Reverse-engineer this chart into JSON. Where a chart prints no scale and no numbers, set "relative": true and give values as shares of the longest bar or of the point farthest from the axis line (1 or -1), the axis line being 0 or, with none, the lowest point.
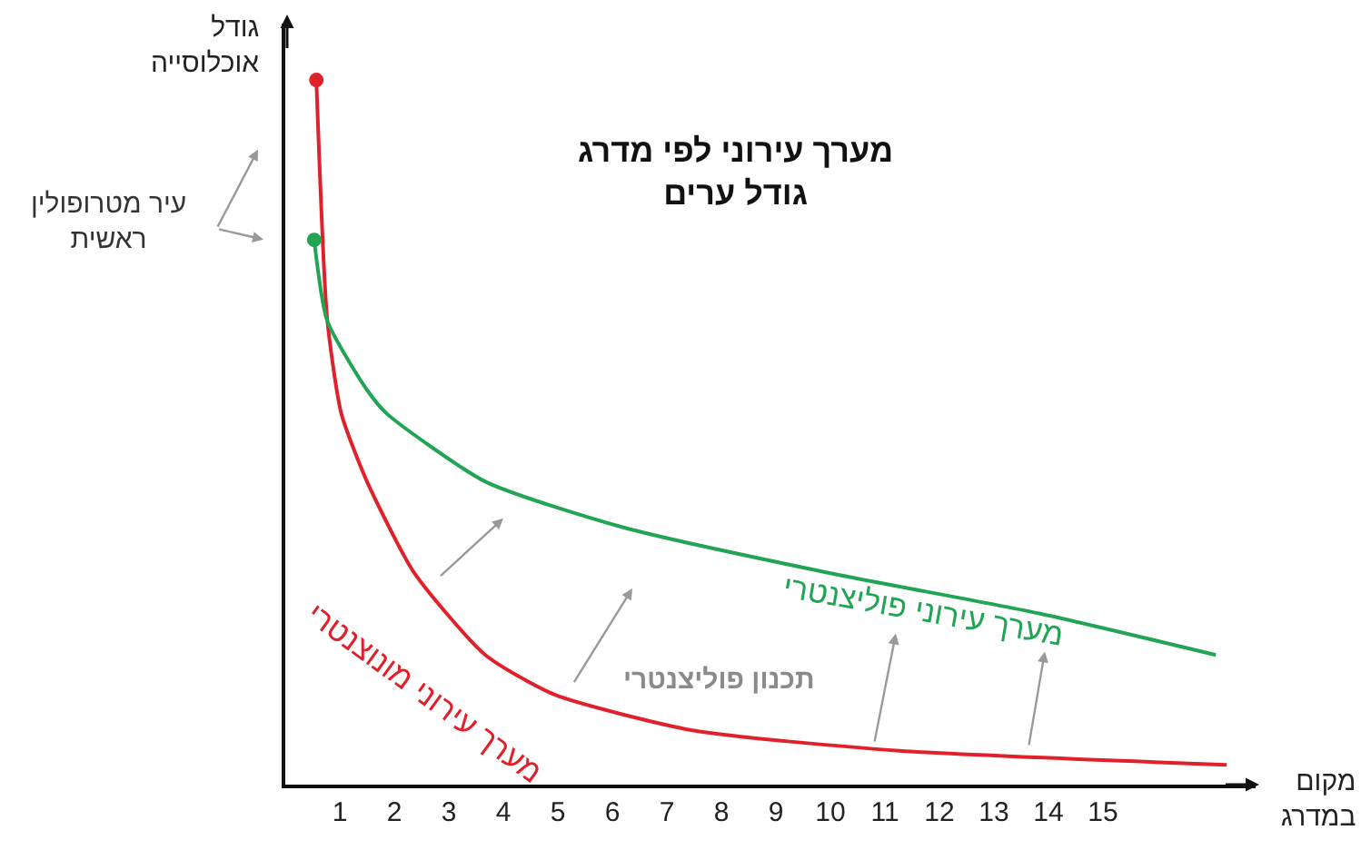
{
  "chart_data": {
    "type": "line",
    "relative": true,
    "title": "מערך עירוני לפי מדרג\nגודל ערים",
    "xlabel": "מקום\nבמדרג",
    "ylabel": "גודל\nאוכלוסייה",
    "xlim": [
      0,
      17.8
    ],
    "xticks": [
      1,
      2,
      3,
      4,
      5,
      6,
      7,
      8,
      9,
      10,
      11,
      12,
      13,
      14,
      15
    ],
    "series": [
      {
        "name": "מערך עירוני מונוצנטרי",
        "color": "#e0202a",
        "x": [
          0.57,
          0.77,
          1.03,
          1.5,
          2.37,
          3.67,
          4.93,
          7.47,
          11.27,
          17.27
        ],
        "values": [
          1.0,
          0.66,
          0.526,
          0.43,
          0.3,
          0.184,
          0.128,
          0.077,
          0.048,
          0.028
        ]
      },
      {
        "name": "מערך עירוני פוליצנטרי",
        "color": "#22a455",
        "x": [
          0.53,
          0.77,
          1.5,
          1.87,
          3.67,
          6.2,
          10.0,
          13.83,
          17.07
        ],
        "values": [
          0.773,
          0.658,
          0.56,
          0.526,
          0.43,
          0.365,
          0.3,
          0.243,
          0.184
        ]
      },
      {
        "type": "scatter",
        "color": "#e0202a",
        "x": [
          0.57
        ],
        "values": [
          1.0
        ]
      },
      {
        "type": "scatter",
        "color": "#22a455",
        "x": [
          0.53
        ],
        "values": [
          0.773
        ]
      }
    ],
    "legend": false,
    "annotations": [
      "עיר מטרופולין\nראשית",
      "תכנון פוליצנטרי"
    ]
  }
}
